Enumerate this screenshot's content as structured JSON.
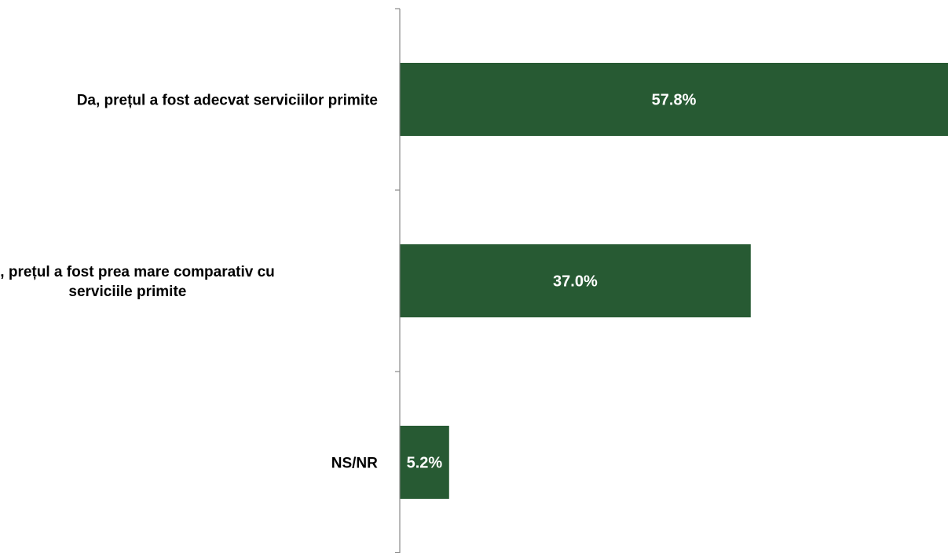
{
  "chart_data": {
    "type": "bar",
    "orientation": "horizontal",
    "categories": [
      "Da, prețul a fost adecvat serviciilor primite",
      "Nu, prețul a fost prea mare comparativ cu serviciile primite",
      "NS/NR"
    ],
    "category_label_lines": [
      [
        "Da, prețul a fost adecvat serviciilor primite"
      ],
      [
        "Nu, prețul a fost prea mare comparativ cu",
        "serviciile primite"
      ],
      [
        "NS/NR"
      ]
    ],
    "values": [
      57.8,
      37.0,
      5.2
    ],
    "data_labels": [
      "57.8%",
      "37.0%",
      "5.2%"
    ],
    "xlim": [
      0,
      57.8
    ],
    "grid": false,
    "legend": "none",
    "bar_color": "#275a33",
    "axis_color": "#888888"
  }
}
